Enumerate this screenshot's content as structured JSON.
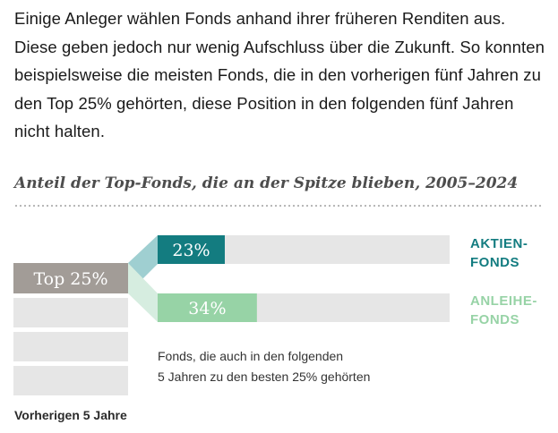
{
  "intro_text": "Einige Anleger wählen Fonds anhand ihrer früheren Renditen aus. Diese geben jedoch nur wenig Aufschluss über die Zukunft. So konnten beispielsweise die meisten Fonds, die in den vorherigen fünf Jahren zu den Top 25% gehörten, diese Position in den folgenden fünf Jahren nicht halten.",
  "colors": {
    "aktien": "#137c80",
    "aktien_link": "#9fcfd1",
    "anleihe": "#97d3a6",
    "anleihe_link": "#d6ede0",
    "track": "#e6e6e6",
    "top_box": "#a29c97",
    "lower_box": "#e6e6e6",
    "dots": "#b0b0b0"
  },
  "chart_data": {
    "type": "bar",
    "title": "Anteil der Top-Fonds, die an der Spitze blieben, 2005–2024",
    "source_label": "Top 25%",
    "source_caption": "Vorherigen 5 Jahre",
    "categories": [
      "AKTIEN-FONDS",
      "ANLEIHE-FONDS"
    ],
    "series": [
      {
        "name": "Aktienfonds",
        "label_lines": [
          "AKTIEN-",
          "FONDS"
        ],
        "value": 23,
        "value_label": "23%"
      },
      {
        "name": "Anleihefonds",
        "label_lines": [
          "ANLEIHE-",
          "FONDS"
        ],
        "value": 34,
        "value_label": "34%"
      }
    ],
    "values": [
      23,
      34
    ],
    "xlim": [
      0,
      100
    ],
    "annotation_lines": [
      "Fonds, die auch in den folgenden",
      "5 Jahren zu den besten 25% gehörten"
    ]
  }
}
